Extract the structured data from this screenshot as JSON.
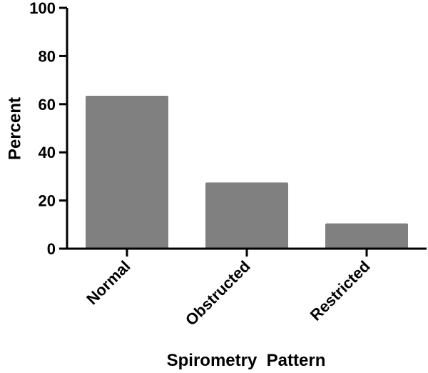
{
  "chart_data": {
    "type": "bar",
    "categories": [
      "Normal",
      "Obstructed",
      "Restricted"
    ],
    "values": [
      63.5,
      27.5,
      10.5
    ],
    "xlabel": "Spirometry  Pattern",
    "ylabel": "Percent",
    "ylim": [
      0,
      100
    ],
    "yticks": [
      "0",
      "20",
      "40",
      "60",
      "80",
      "100"
    ],
    "grid": false,
    "legend": "none",
    "bar_color": "#808080",
    "axis_color": "#000000"
  }
}
